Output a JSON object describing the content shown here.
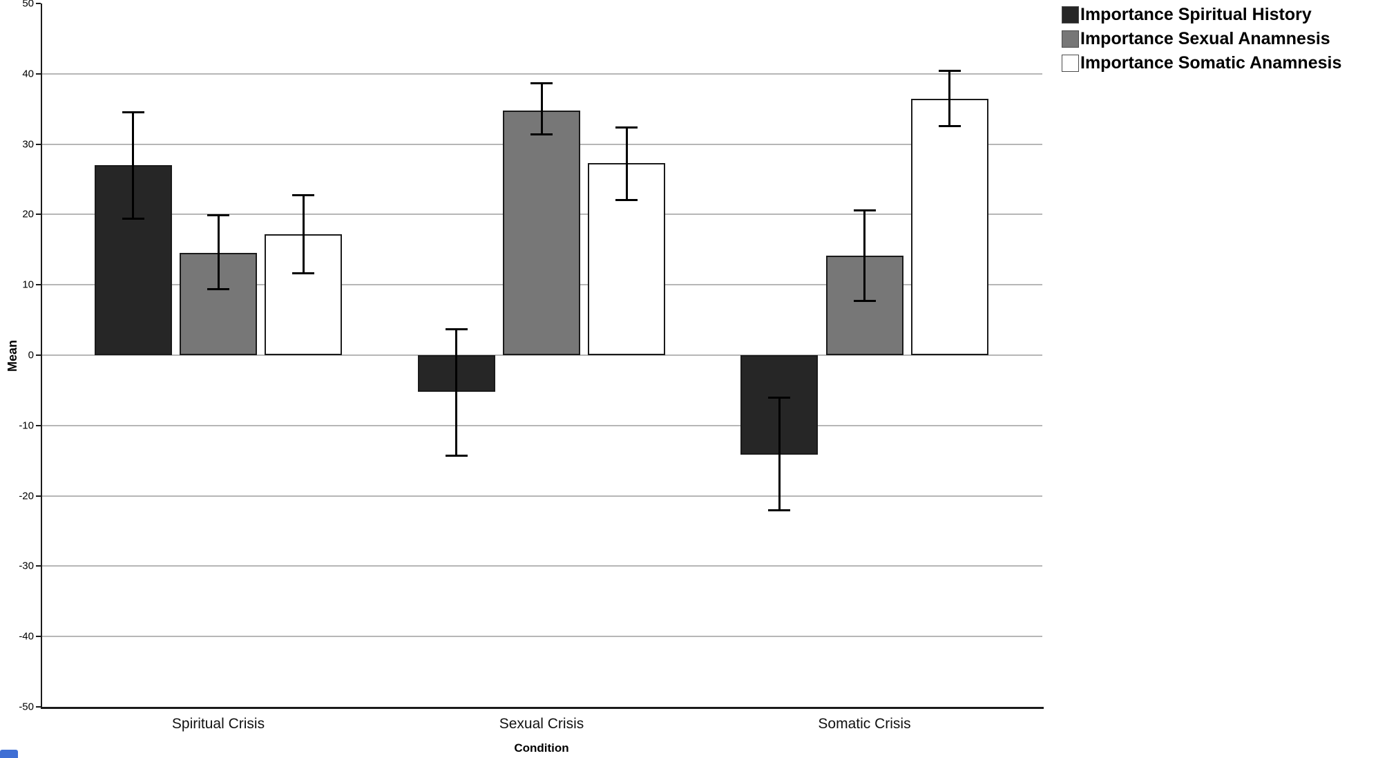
{
  "chart_data": {
    "type": "bar",
    "title": "",
    "xlabel": "Condition",
    "ylabel": "Mean",
    "ylim": [
      -50,
      50
    ],
    "ytick_interval": 10,
    "yticks": [
      50,
      40,
      30,
      20,
      10,
      0,
      -10,
      -20,
      -30,
      -40,
      -50
    ],
    "grid": "horizontal",
    "legend_position": "top-right",
    "error_bars": "95% CI",
    "categories": [
      "Spiritual Crisis",
      "Sexual Crisis",
      "Somatic Crisis"
    ],
    "series": [
      {
        "name": "Importance Spiritual History",
        "color": "#262626",
        "values": [
          27.0,
          -5.2,
          -14.1
        ],
        "ci_low": [
          19.4,
          -14.3,
          -22.1
        ],
        "ci_high": [
          34.6,
          3.7,
          -6.0
        ]
      },
      {
        "name": "Importance Sexual Anamnesis",
        "color": "#777777",
        "values": [
          14.5,
          34.8,
          14.1
        ],
        "ci_low": [
          9.3,
          31.3,
          7.7
        ],
        "ci_high": [
          19.9,
          38.7,
          20.6
        ]
      },
      {
        "name": "Importance Somatic Anamnesis",
        "color": "#ffffff",
        "values": [
          17.2,
          27.3,
          36.4
        ],
        "ci_low": [
          11.6,
          22.0,
          32.5
        ],
        "ci_high": [
          22.8,
          32.4,
          40.5
        ]
      }
    ]
  },
  "colors": {
    "gridline": "#b6b6b6",
    "axis": "#1a1a1a",
    "error_bar": "#000000",
    "corner_fragment": "#3f6fd4"
  }
}
